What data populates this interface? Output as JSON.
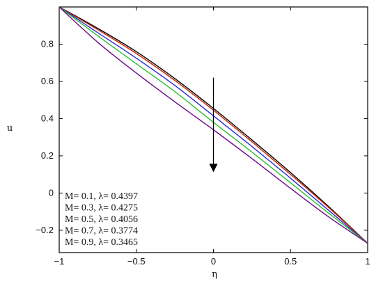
{
  "chart_data": {
    "type": "line",
    "xlabel": "η",
    "ylabel": "u",
    "xlim": [
      -1,
      1
    ],
    "ylim": [
      -0.32,
      1.0
    ],
    "grid": false,
    "legend_position": "bottom-left",
    "x_ticks": [
      {
        "value": -1,
        "label": "−1"
      },
      {
        "value": -0.5,
        "label": "−0.5"
      },
      {
        "value": 0,
        "label": "0"
      },
      {
        "value": 0.5,
        "label": "0.5"
      },
      {
        "value": 1,
        "label": "1"
      }
    ],
    "y_ticks": [
      {
        "value": -0.2,
        "label": "−0.2"
      },
      {
        "value": 0,
        "label": "0"
      },
      {
        "value": 0.2,
        "label": "0.2"
      },
      {
        "value": 0.4,
        "label": "0.4"
      },
      {
        "value": 0.6,
        "label": "0.6"
      },
      {
        "value": 0.8,
        "label": "0.8"
      }
    ],
    "x": [
      -1,
      -0.75,
      -0.5,
      -0.25,
      0,
      0.25,
      0.5,
      0.75,
      1
    ],
    "series": [
      {
        "name": "M= 0.1, λ= 0.4397",
        "color": "#000000",
        "values": [
          1.0,
          0.885,
          0.76,
          0.615,
          0.455,
          0.285,
          0.11,
          -0.075,
          -0.27
        ]
      },
      {
        "name": "M= 0.3, λ= 0.4275",
        "color": "#cc2200",
        "values": [
          1.0,
          0.878,
          0.75,
          0.605,
          0.445,
          0.275,
          0.1,
          -0.08,
          -0.27
        ]
      },
      {
        "name": "M= 0.5, λ= 0.4056",
        "color": "#2a2ad8",
        "values": [
          1.0,
          0.862,
          0.725,
          0.578,
          0.415,
          0.25,
          0.08,
          -0.095,
          -0.27
        ]
      },
      {
        "name": "M= 0.7, λ= 0.3774",
        "color": "#2bbf2b",
        "values": [
          1.0,
          0.845,
          0.695,
          0.545,
          0.38,
          0.22,
          0.055,
          -0.11,
          -0.27
        ]
      },
      {
        "name": "M= 0.9, λ= 0.3465",
        "color": "#6a0a8a",
        "values": [
          1.0,
          0.81,
          0.645,
          0.49,
          0.34,
          0.185,
          0.025,
          -0.13,
          -0.27
        ]
      }
    ],
    "annotations": [
      {
        "type": "arrow",
        "direction": "down",
        "x": 0,
        "y_from": 0.62,
        "y_to": 0.12
      }
    ]
  }
}
